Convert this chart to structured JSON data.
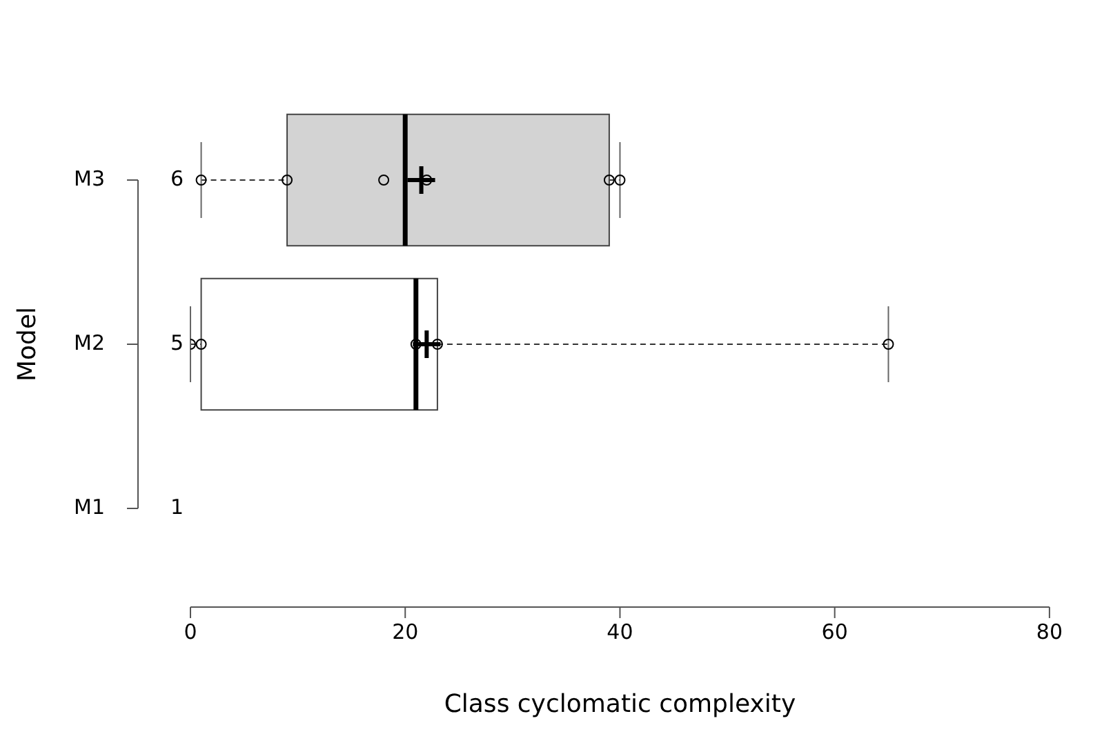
{
  "chart_data": {
    "type": "box",
    "orientation": "horizontal",
    "categories": [
      "M3",
      "M2",
      "M1"
    ],
    "xlabel": "Class cyclomatic complexity",
    "ylabel": "Model",
    "xlim": [
      0,
      80
    ],
    "xticks": [
      0,
      20,
      40,
      60,
      80
    ],
    "colors": [
      "#d3d3d3",
      "#ffffff",
      null
    ],
    "boxes": [
      {
        "low": 1,
        "q1": 9,
        "median": 20,
        "q3": 39,
        "high": 40,
        "mean": 21.5
      },
      {
        "low": 0,
        "q1": 1,
        "median": 21,
        "q3": 23,
        "high": 65,
        "mean": 22
      },
      null
    ],
    "series": [
      {
        "type": "scatter",
        "color": "#000000",
        "marker": "circle",
        "x": [
          "M3",
          "M3",
          "M3",
          "M3",
          "M3",
          "M3",
          "M2",
          "M2",
          "M2",
          "M2",
          "M2"
        ],
        "values": [
          1,
          9,
          18,
          22,
          39,
          40,
          0,
          1,
          21,
          23,
          65
        ]
      }
    ],
    "annotations": [
      "6",
      "5",
      "1"
    ]
  }
}
